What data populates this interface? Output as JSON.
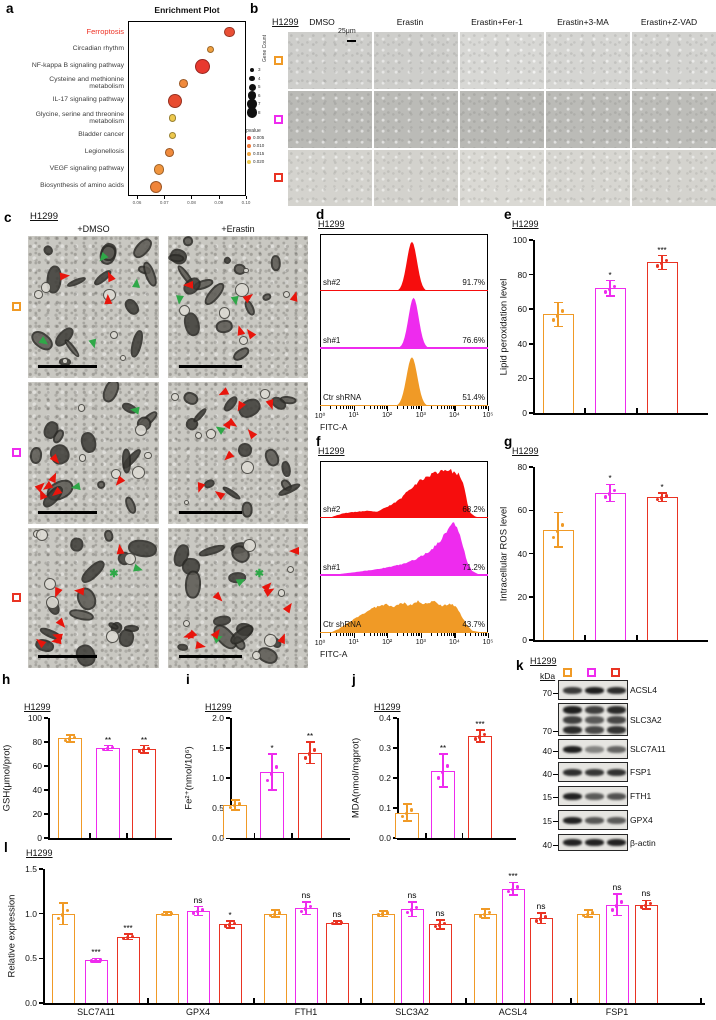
{
  "panel_labels": {
    "a": "a",
    "b": "b",
    "c": "c",
    "d": "d",
    "e": "e",
    "f": "f",
    "g": "g",
    "h": "h",
    "i": "i",
    "j": "j",
    "k": "k",
    "l": "l"
  },
  "colors": {
    "orange": "#F09A26",
    "magenta": "#EE2BEE",
    "red": "#E93323",
    "flow_red": "#F60D0D",
    "green_arrow": "#2FA848",
    "red_arrow": "#E8150C",
    "ferroptosis": "#EE3224",
    "black": "#000000"
  },
  "panel_b": {
    "cell_line": "H1299",
    "treatments": [
      "DMSO",
      "Erastin",
      "Erastin+Fer-1",
      "Erastin+3-MA",
      "Erastin+Z-VAD"
    ],
    "scale_label": "25μm",
    "rows": [
      {
        "marker": "#F09A26",
        "tone": ""
      },
      {
        "marker": "#EE2BEE",
        "tone": "dark"
      },
      {
        "marker": "#E93323",
        "tone": "light2"
      }
    ]
  },
  "panel_c": {
    "cell_line": "H1299",
    "conditions": [
      "+DMSO",
      "+Erastin"
    ],
    "rows": [
      {
        "marker": "#F09A26"
      },
      {
        "marker": "#EE2BEE"
      },
      {
        "marker": "#E93323"
      }
    ],
    "cells": [
      [
        {
          "green": 4,
          "red": 3,
          "star": 0
        },
        {
          "green": 2,
          "red": 5,
          "star": 0
        }
      ],
      [
        {
          "green": 2,
          "red": 7,
          "star": 0
        },
        {
          "green": 1,
          "red": 9,
          "star": 0
        }
      ],
      [
        {
          "green": 1,
          "red": 7,
          "star": 1
        },
        {
          "green": 2,
          "red": 10,
          "star": 1
        }
      ]
    ]
  },
  "panel_k": {
    "cell_line": "H1299",
    "unit": "kDa",
    "lane_markers": [
      "#F09A26",
      "#EE2BEE",
      "#E93323"
    ],
    "rows": [
      {
        "kda": "70",
        "label": "ACSL4",
        "smear": false,
        "bands": [
          0.78,
          0.92,
          0.85
        ]
      },
      {
        "kda": "70",
        "label": "SLC3A2",
        "smear": true,
        "bands": [
          0.95,
          0.8,
          0.9
        ]
      },
      {
        "kda": "40",
        "label": "SLC7A11",
        "smear": false,
        "bands": [
          0.92,
          0.38,
          0.55
        ]
      },
      {
        "kda": "40",
        "label": "FSP1",
        "smear": false,
        "bands": [
          0.85,
          0.8,
          0.82
        ]
      },
      {
        "kda": "15",
        "label": "FTH1",
        "smear": false,
        "bands": [
          0.9,
          0.6,
          0.65
        ]
      },
      {
        "kda": "15",
        "label": "GPX4",
        "smear": false,
        "bands": [
          0.9,
          0.62,
          0.6
        ]
      },
      {
        "kda": "40",
        "label": "β-actin",
        "smear": false,
        "bands": [
          0.9,
          0.9,
          0.9
        ]
      }
    ]
  },
  "chart_data": [
    {
      "id": "a",
      "type": "scatter",
      "title": "Enrichment Plot",
      "x_axis": {
        "ticks": [
          "0.06",
          "0.07",
          "0.08",
          "0.09",
          "0.10"
        ],
        "range": [
          0.0567,
          0.1
        ]
      },
      "legend": {
        "gene_count_title": "Gene Count",
        "gene_counts": [
          3,
          4,
          5,
          6,
          7,
          8
        ],
        "pvalue_title": "pvalue",
        "pvalues": [
          {
            "label": "0.005",
            "color": "#E8392F"
          },
          {
            "label": "0.010",
            "color": "#F07A38"
          },
          {
            "label": "0.015",
            "color": "#F0A844"
          },
          {
            "label": "0.020",
            "color": "#EDC84D"
          }
        ]
      },
      "pathways": [
        {
          "name": "Ferroptosis",
          "gene_ratio": 0.094,
          "count": 5,
          "color": "#E94F35",
          "highlight": true
        },
        {
          "name": "Circadian rhythm",
          "gene_ratio": 0.087,
          "count": 3,
          "color": "#F0A040",
          "highlight": false
        },
        {
          "name": "NF-kappa B signaling pathway",
          "gene_ratio": 0.084,
          "count": 8,
          "color": "#E8392F",
          "highlight": false
        },
        {
          "name": "Cysteine and methionine\nmetabolism",
          "gene_ratio": 0.077,
          "count": 4,
          "color": "#F08A3C",
          "highlight": false
        },
        {
          "name": "IL-17 signaling pathway",
          "gene_ratio": 0.074,
          "count": 7,
          "color": "#E84C30",
          "highlight": false
        },
        {
          "name": "Glycine, serine and threonine\nmetabolism",
          "gene_ratio": 0.073,
          "count": 3,
          "color": "#EDC84D",
          "highlight": false
        },
        {
          "name": "Bladder cancer",
          "gene_ratio": 0.073,
          "count": 3,
          "color": "#EDC84D",
          "highlight": false
        },
        {
          "name": "Legionellosis",
          "gene_ratio": 0.072,
          "count": 4,
          "color": "#F08A3C",
          "highlight": false
        },
        {
          "name": "VEGF signaling pathway",
          "gene_ratio": 0.068,
          "count": 5,
          "color": "#F0953E",
          "highlight": false
        },
        {
          "name": "Biosynthesis of amino acids",
          "gene_ratio": 0.067,
          "count": 6,
          "color": "#F0853A",
          "highlight": false
        }
      ]
    },
    {
      "id": "d",
      "type": "flow-histogram",
      "cell_line": "H1299",
      "xlabel": "FITC-A",
      "xticks": [
        "10⁰",
        "10¹",
        "10²",
        "10³",
        "10⁴",
        "10⁵"
      ],
      "series": [
        {
          "label": "sh#2",
          "percent": "91.7%",
          "color": "flow_red",
          "gauss": {
            "center": 0.545,
            "sigma": 0.031,
            "amp": 0.93
          }
        },
        {
          "label": "sh#1",
          "percent": "76.6%",
          "color": "magenta",
          "gauss": {
            "center": 0.555,
            "sigma": 0.031,
            "amp": 0.95
          }
        },
        {
          "label": "Ctr shRNA",
          "percent": "51.4%",
          "color": "orange",
          "gauss": {
            "center": 0.545,
            "sigma": 0.033,
            "amp": 0.92
          }
        }
      ]
    },
    {
      "id": "f",
      "type": "flow-histogram",
      "cell_line": "H1299",
      "xlabel": "FITC-A",
      "xticks": [
        "10⁰",
        "10¹",
        "10²",
        "10³",
        "10⁴",
        "10⁵"
      ],
      "series": [
        {
          "label": "sh#2",
          "percent": "68.2%",
          "color": "flow_red",
          "jagged": true,
          "points": [
            [
              0.04,
              0
            ],
            [
              0.08,
              0.05
            ],
            [
              0.14,
              0.1
            ],
            [
              0.2,
              0.12
            ],
            [
              0.27,
              0.14
            ],
            [
              0.33,
              0.12
            ],
            [
              0.4,
              0.22
            ],
            [
              0.47,
              0.35
            ],
            [
              0.53,
              0.55
            ],
            [
              0.6,
              0.72
            ],
            [
              0.66,
              0.82
            ],
            [
              0.71,
              0.88
            ],
            [
              0.75,
              0.92
            ],
            [
              0.79,
              0.88
            ],
            [
              0.83,
              0.82
            ],
            [
              0.86,
              0.6
            ],
            [
              0.88,
              0.3
            ],
            [
              0.9,
              0.1
            ],
            [
              0.93,
              0.03
            ],
            [
              1,
              0
            ]
          ]
        },
        {
          "label": "sh#1",
          "percent": "71.2%",
          "color": "magenta",
          "jagged": true,
          "points": [
            [
              0.06,
              0
            ],
            [
              0.12,
              0.03
            ],
            [
              0.2,
              0.06
            ],
            [
              0.3,
              0.1
            ],
            [
              0.4,
              0.15
            ],
            [
              0.5,
              0.22
            ],
            [
              0.58,
              0.32
            ],
            [
              0.65,
              0.45
            ],
            [
              0.71,
              0.62
            ],
            [
              0.76,
              0.85
            ],
            [
              0.79,
              1.0
            ],
            [
              0.82,
              0.9
            ],
            [
              0.85,
              0.6
            ],
            [
              0.88,
              0.25
            ],
            [
              0.91,
              0.08
            ],
            [
              0.95,
              0.02
            ],
            [
              1,
              0
            ]
          ]
        },
        {
          "label": "Ctr shRNA",
          "percent": "43.7%",
          "color": "orange",
          "jagged": true,
          "points": [
            [
              0.04,
              0
            ],
            [
              0.1,
              0.08
            ],
            [
              0.16,
              0.2
            ],
            [
              0.22,
              0.32
            ],
            [
              0.28,
              0.42
            ],
            [
              0.33,
              0.5
            ],
            [
              0.38,
              0.55
            ],
            [
              0.43,
              0.5
            ],
            [
              0.48,
              0.58
            ],
            [
              0.53,
              0.52
            ],
            [
              0.58,
              0.6
            ],
            [
              0.63,
              0.55
            ],
            [
              0.68,
              0.6
            ],
            [
              0.73,
              0.52
            ],
            [
              0.78,
              0.56
            ],
            [
              0.82,
              0.48
            ],
            [
              0.85,
              0.3
            ],
            [
              0.88,
              0.15
            ],
            [
              0.91,
              0.05
            ],
            [
              1,
              0
            ]
          ]
        }
      ]
    },
    {
      "id": "e",
      "type": "bar",
      "cell_line": "H1299",
      "ylabel": "Lipid peroxidation level",
      "ylim": [
        0,
        100
      ],
      "yticks": [
        "0",
        "20",
        "40",
        "60",
        "80",
        "100"
      ],
      "bars": [
        {
          "value": 57,
          "err": 7,
          "sig": "",
          "color": "orange"
        },
        {
          "value": 72,
          "err": 4.5,
          "sig": "*",
          "color": "magenta"
        },
        {
          "value": 87,
          "err": 4,
          "sig": "***",
          "color": "red"
        }
      ]
    },
    {
      "id": "g",
      "type": "bar",
      "cell_line": "H1299",
      "ylabel": "Intracellular ROS level",
      "ylim": [
        0,
        80
      ],
      "yticks": [
        "0",
        "20",
        "40",
        "60",
        "80"
      ],
      "bars": [
        {
          "value": 51,
          "err": 8,
          "sig": "",
          "color": "orange"
        },
        {
          "value": 68,
          "err": 4,
          "sig": "*",
          "color": "magenta"
        },
        {
          "value": 66,
          "err": 2,
          "sig": "*",
          "color": "red"
        }
      ]
    },
    {
      "id": "h",
      "type": "bar",
      "cell_line": "H1299",
      "ylabel": "GSH(μmol/prot)",
      "ylim": [
        0,
        100
      ],
      "yticks": [
        "0",
        "20",
        "40",
        "60",
        "80",
        "100"
      ],
      "bars": [
        {
          "value": 83,
          "err": 3,
          "sig": "",
          "color": "orange"
        },
        {
          "value": 75,
          "err": 2,
          "sig": "**",
          "color": "magenta"
        },
        {
          "value": 74,
          "err": 3,
          "sig": "**",
          "color": "red"
        }
      ]
    },
    {
      "id": "i",
      "type": "bar",
      "cell_line": "H1299",
      "ylabel": "Fe²⁺(nmol/10⁶)",
      "ylim": [
        0,
        2
      ],
      "yticks": [
        "0.0",
        "0.5",
        "1.0",
        "1.5",
        "2.0"
      ],
      "bars": [
        {
          "value": 0.55,
          "err": 0.08,
          "sig": "",
          "color": "orange"
        },
        {
          "value": 1.1,
          "err": 0.3,
          "sig": "*",
          "color": "magenta"
        },
        {
          "value": 1.42,
          "err": 0.18,
          "sig": "**",
          "color": "red"
        }
      ]
    },
    {
      "id": "j",
      "type": "bar",
      "cell_line": "H1299",
      "ylabel": "MDA(nmol/mgprot)",
      "ylim": [
        0,
        0.4
      ],
      "yticks": [
        "0.0",
        "0.1",
        "0.2",
        "0.3",
        "0.4"
      ],
      "bars": [
        {
          "value": 0.085,
          "err": 0.028,
          "sig": "",
          "color": "orange"
        },
        {
          "value": 0.225,
          "err": 0.055,
          "sig": "**",
          "color": "magenta"
        },
        {
          "value": 0.34,
          "err": 0.02,
          "sig": "***",
          "color": "red"
        }
      ]
    },
    {
      "id": "l",
      "type": "grouped-bar",
      "cell_line": "H1299",
      "ylabel": "Relative expression",
      "ylim": [
        0,
        1.5
      ],
      "yticks": [
        "0.0",
        "0.5",
        "1.0",
        "1.5"
      ],
      "groups": [
        {
          "label": "SLC7A11",
          "bars": [
            {
              "value": 1.0,
              "err": 0.12,
              "sig": "",
              "color": "orange"
            },
            {
              "value": 0.48,
              "err": 0.02,
              "sig": "***",
              "color": "magenta"
            },
            {
              "value": 0.74,
              "err": 0.03,
              "sig": "***",
              "color": "red"
            }
          ]
        },
        {
          "label": "GPX4",
          "bars": [
            {
              "value": 1.0,
              "err": 0.02,
              "sig": "",
              "color": "orange"
            },
            {
              "value": 1.03,
              "err": 0.05,
              "sig": "ns",
              "color": "magenta"
            },
            {
              "value": 0.88,
              "err": 0.04,
              "sig": "*",
              "color": "red"
            }
          ]
        },
        {
          "label": "FTH1",
          "bars": [
            {
              "value": 1.0,
              "err": 0.04,
              "sig": "",
              "color": "orange"
            },
            {
              "value": 1.06,
              "err": 0.07,
              "sig": "ns",
              "color": "magenta"
            },
            {
              "value": 0.9,
              "err": 0.02,
              "sig": "ns",
              "color": "red"
            }
          ]
        },
        {
          "label": "SLC3A2",
          "bars": [
            {
              "value": 1.0,
              "err": 0.03,
              "sig": "",
              "color": "orange"
            },
            {
              "value": 1.05,
              "err": 0.08,
              "sig": "ns",
              "color": "magenta"
            },
            {
              "value": 0.88,
              "err": 0.05,
              "sig": "ns",
              "color": "red"
            }
          ]
        },
        {
          "label": "ACSL4",
          "bars": [
            {
              "value": 1.0,
              "err": 0.05,
              "sig": "",
              "color": "orange"
            },
            {
              "value": 1.28,
              "err": 0.07,
              "sig": "***",
              "color": "magenta"
            },
            {
              "value": 0.95,
              "err": 0.06,
              "sig": "ns",
              "color": "red"
            }
          ]
        },
        {
          "label": "FSP1",
          "bars": [
            {
              "value": 1.0,
              "err": 0.04,
              "sig": "",
              "color": "orange"
            },
            {
              "value": 1.1,
              "err": 0.12,
              "sig": "ns",
              "color": "magenta"
            },
            {
              "value": 1.1,
              "err": 0.05,
              "sig": "ns",
              "color": "red"
            }
          ]
        }
      ]
    }
  ]
}
